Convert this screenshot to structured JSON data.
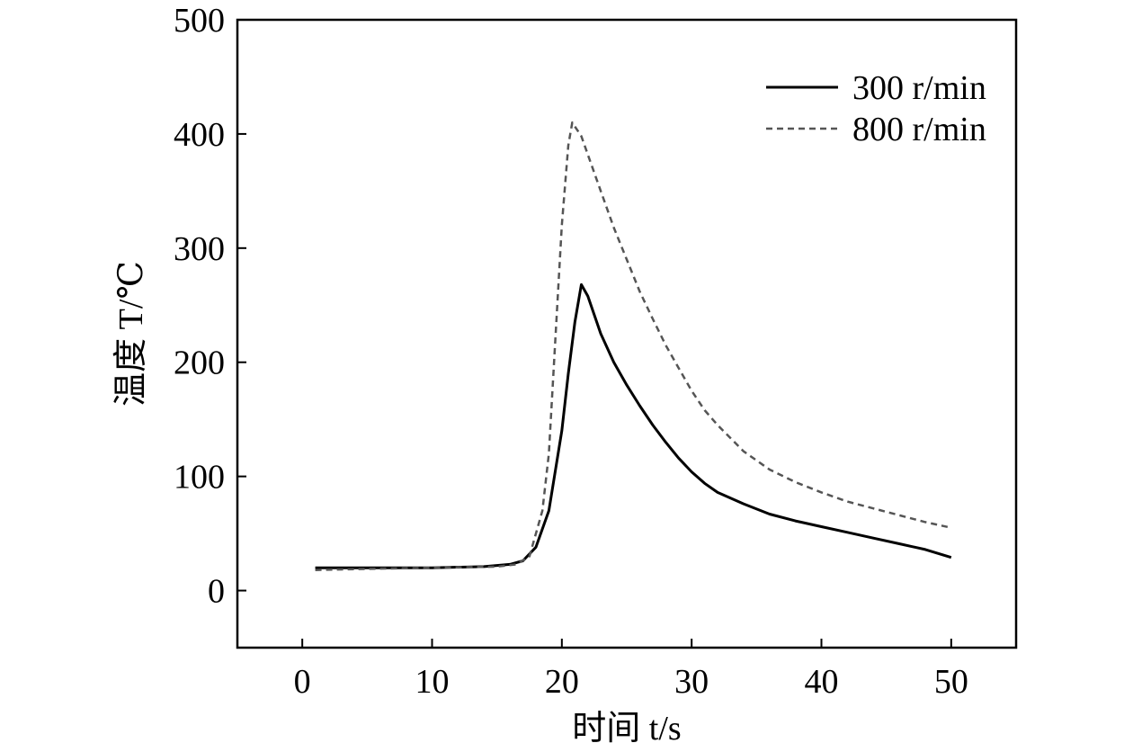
{
  "chart_data": {
    "type": "line",
    "title": "",
    "xlabel": "时间 t/s",
    "ylabel": "温度 T/℃",
    "xlim": [
      -5,
      55
    ],
    "ylim": [
      -50,
      500
    ],
    "xticks": [
      0,
      10,
      20,
      30,
      40,
      50
    ],
    "yticks": [
      0,
      100,
      200,
      300,
      400,
      500
    ],
    "xtick_labels": [
      "0",
      "10",
      "20",
      "30",
      "40",
      "50"
    ],
    "ytick_labels": [
      "0",
      "100",
      "200",
      "300",
      "400",
      "500"
    ],
    "grid": false,
    "legend_position": "top-right",
    "series": [
      {
        "name": "300 r/min",
        "color": "#000000",
        "dash": "solid",
        "points": [
          [
            1,
            20
          ],
          [
            5,
            20
          ],
          [
            10,
            20
          ],
          [
            14,
            21
          ],
          [
            16,
            23
          ],
          [
            17,
            26
          ],
          [
            18,
            38
          ],
          [
            19,
            70
          ],
          [
            20,
            140
          ],
          [
            20.5,
            190
          ],
          [
            21,
            235
          ],
          [
            21.5,
            268
          ],
          [
            22,
            258
          ],
          [
            23,
            225
          ],
          [
            24,
            200
          ],
          [
            25,
            180
          ],
          [
            26,
            162
          ],
          [
            27,
            145
          ],
          [
            28,
            130
          ],
          [
            29,
            116
          ],
          [
            30,
            104
          ],
          [
            31,
            94
          ],
          [
            32,
            86
          ],
          [
            34,
            76
          ],
          [
            36,
            67
          ],
          [
            38,
            61
          ],
          [
            40,
            56
          ],
          [
            42,
            51
          ],
          [
            44,
            46
          ],
          [
            46,
            41
          ],
          [
            48,
            36
          ],
          [
            50,
            29
          ]
        ]
      },
      {
        "name": "800 r/min",
        "color": "#555555",
        "dash": "dashed",
        "points": [
          [
            1,
            18
          ],
          [
            5,
            19
          ],
          [
            10,
            20
          ],
          [
            15,
            21
          ],
          [
            16.5,
            23
          ],
          [
            17.5,
            30
          ],
          [
            18.5,
            70
          ],
          [
            19,
            120
          ],
          [
            19.5,
            220
          ],
          [
            20,
            320
          ],
          [
            20.5,
            390
          ],
          [
            20.8,
            410
          ],
          [
            21.5,
            398
          ],
          [
            22,
            382
          ],
          [
            23,
            350
          ],
          [
            24,
            318
          ],
          [
            25,
            290
          ],
          [
            26,
            262
          ],
          [
            27,
            238
          ],
          [
            28,
            215
          ],
          [
            29,
            195
          ],
          [
            30,
            175
          ],
          [
            31,
            158
          ],
          [
            32,
            145
          ],
          [
            34,
            122
          ],
          [
            36,
            106
          ],
          [
            38,
            95
          ],
          [
            40,
            86
          ],
          [
            42,
            78
          ],
          [
            44,
            72
          ],
          [
            46,
            66
          ],
          [
            48,
            60
          ],
          [
            50,
            55
          ]
        ]
      }
    ]
  }
}
